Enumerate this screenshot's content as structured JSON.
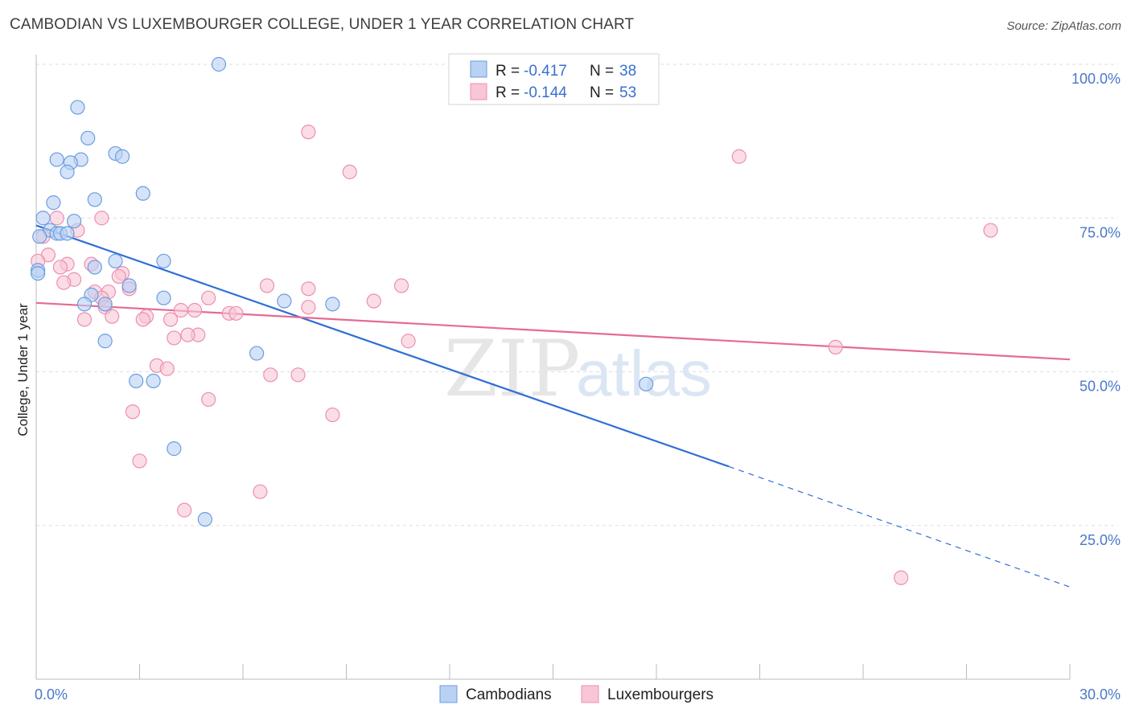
{
  "title": "CAMBODIAN VS LUXEMBOURGER COLLEGE, UNDER 1 YEAR CORRELATION CHART",
  "source": "Source: ZipAtlas.com",
  "watermark": {
    "zip": "ZIP",
    "atlas": "atlas"
  },
  "colors": {
    "blue": "#6a9de0",
    "blue_fill": "#b9d1f3",
    "blue_line": "#2f6fd6",
    "pink": "#ec8fb0",
    "pink_fill": "#f8c6d6",
    "pink_line": "#e56b93",
    "grid": "#dddddd"
  },
  "legend": {
    "rows": [
      {
        "r_label": "R =",
        "r_value": "-0.417",
        "n_label": "N =",
        "n_value": "38"
      },
      {
        "r_label": "R =",
        "r_value": "-0.144",
        "n_label": "N =",
        "n_value": "53"
      }
    ]
  },
  "bottom_legend": [
    "Cambodians",
    "Luxembourgers"
  ],
  "chart_data": {
    "type": "scatter",
    "title": "CAMBODIAN VS LUXEMBOURGER COLLEGE, UNDER 1 YEAR CORRELATION CHART",
    "xlabel": "",
    "ylabel": "College, Under 1 year",
    "xlim": [
      0,
      30
    ],
    "ylim": [
      0,
      100
    ],
    "x_tick_labels": [
      "0.0%",
      "30.0%"
    ],
    "y_ticks": [
      25,
      50,
      75,
      100
    ],
    "y_tick_labels": [
      "25.0%",
      "50.0%",
      "75.0%",
      "100.0%"
    ],
    "series": [
      {
        "name": "Cambodians",
        "r": -0.417,
        "n": 38,
        "trend": {
          "x0": 0,
          "y0": 73.8,
          "x1": 20.1,
          "y1": 34.6,
          "dash_to_x": 30,
          "dash_to_y": 15.0
        },
        "points": [
          [
            5.3,
            100.0
          ],
          [
            1.2,
            93.0
          ],
          [
            1.5,
            88.0
          ],
          [
            2.3,
            85.5
          ],
          [
            2.5,
            85.0
          ],
          [
            0.6,
            84.5
          ],
          [
            1.3,
            84.5
          ],
          [
            1.0,
            84.0
          ],
          [
            0.9,
            82.5
          ],
          [
            3.1,
            79.0
          ],
          [
            1.7,
            78.0
          ],
          [
            0.5,
            77.5
          ],
          [
            0.2,
            75.0
          ],
          [
            1.1,
            74.5
          ],
          [
            0.4,
            73.0
          ],
          [
            0.6,
            72.5
          ],
          [
            0.7,
            72.5
          ],
          [
            0.9,
            72.5
          ],
          [
            0.1,
            72.0
          ],
          [
            3.7,
            68.0
          ],
          [
            2.3,
            68.0
          ],
          [
            1.7,
            67.0
          ],
          [
            0.05,
            66.5
          ],
          [
            2.7,
            64.0
          ],
          [
            1.6,
            62.5
          ],
          [
            3.7,
            62.0
          ],
          [
            7.2,
            61.5
          ],
          [
            8.6,
            61.0
          ],
          [
            1.4,
            61.0
          ],
          [
            2.0,
            61.0
          ],
          [
            2.0,
            55.0
          ],
          [
            6.4,
            53.0
          ],
          [
            2.9,
            48.5
          ],
          [
            3.4,
            48.5
          ],
          [
            17.7,
            48.0
          ],
          [
            4.0,
            37.5
          ],
          [
            4.9,
            26.0
          ],
          [
            0.05,
            66.0
          ]
        ]
      },
      {
        "name": "Luxembourgers",
        "r": -0.144,
        "n": 53,
        "trend": {
          "x0": 0,
          "y0": 61.2,
          "x1": 30,
          "y1": 52.0
        },
        "points": [
          [
            7.9,
            89.0
          ],
          [
            20.4,
            85.0
          ],
          [
            9.1,
            82.5
          ],
          [
            1.9,
            75.0
          ],
          [
            0.6,
            75.0
          ],
          [
            27.7,
            73.0
          ],
          [
            1.2,
            73.0
          ],
          [
            0.2,
            72.0
          ],
          [
            0.35,
            69.0
          ],
          [
            0.05,
            68.0
          ],
          [
            1.6,
            67.5
          ],
          [
            0.9,
            67.5
          ],
          [
            0.7,
            67.0
          ],
          [
            2.5,
            66.0
          ],
          [
            2.4,
            65.5
          ],
          [
            1.1,
            65.0
          ],
          [
            0.8,
            64.5
          ],
          [
            6.7,
            64.0
          ],
          [
            10.6,
            64.0
          ],
          [
            7.9,
            63.5
          ],
          [
            2.7,
            63.5
          ],
          [
            2.1,
            63.0
          ],
          [
            1.7,
            63.0
          ],
          [
            5.0,
            62.0
          ],
          [
            1.9,
            62.0
          ],
          [
            9.8,
            61.5
          ],
          [
            2.0,
            60.5
          ],
          [
            7.9,
            60.5
          ],
          [
            4.2,
            60.0
          ],
          [
            4.6,
            60.0
          ],
          [
            5.6,
            59.5
          ],
          [
            5.8,
            59.5
          ],
          [
            3.2,
            59.0
          ],
          [
            2.2,
            59.0
          ],
          [
            3.9,
            58.5
          ],
          [
            3.1,
            58.5
          ],
          [
            1.4,
            58.5
          ],
          [
            4.7,
            56.0
          ],
          [
            4.4,
            56.0
          ],
          [
            4.0,
            55.5
          ],
          [
            10.8,
            55.0
          ],
          [
            23.2,
            54.0
          ],
          [
            3.5,
            51.0
          ],
          [
            3.8,
            50.5
          ],
          [
            6.8,
            49.5
          ],
          [
            7.6,
            49.5
          ],
          [
            5.0,
            45.5
          ],
          [
            8.6,
            43.0
          ],
          [
            2.8,
            43.5
          ],
          [
            3.0,
            35.5
          ],
          [
            6.5,
            30.5
          ],
          [
            4.3,
            27.5
          ],
          [
            25.1,
            16.5
          ]
        ]
      }
    ]
  }
}
